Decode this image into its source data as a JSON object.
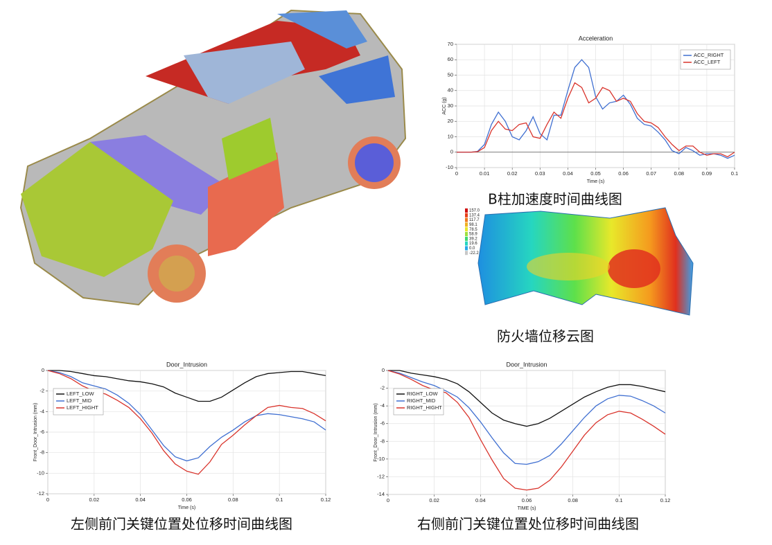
{
  "captions": [
    "B柱加速度时间曲线图",
    "防火墙位移云图",
    "左侧前门关键位置处位移时间曲线图",
    "右侧前门关键位置处位移时间曲线图"
  ],
  "contour_legend": [
    "157.0",
    "137.4",
    "117.7",
    "98.1",
    "78.5",
    "58.9",
    "39.2",
    "19.6",
    "0.0",
    "-22.2"
  ],
  "chart_data": [
    {
      "type": "line",
      "title": "Acceleration",
      "xlabel": "Time (s)",
      "ylabel": "ACC (g)",
      "x": [
        0,
        0.0025,
        0.005,
        0.0075,
        0.01,
        0.0125,
        0.015,
        0.0175,
        0.02,
        0.0225,
        0.025,
        0.0275,
        0.03,
        0.0325,
        0.035,
        0.0375,
        0.04,
        0.0425,
        0.045,
        0.0475,
        0.05,
        0.0525,
        0.055,
        0.0575,
        0.06,
        0.0625,
        0.065,
        0.0675,
        0.07,
        0.0725,
        0.075,
        0.0775,
        0.08,
        0.0825,
        0.085,
        0.0875,
        0.09,
        0.0925,
        0.095,
        0.0975,
        0.1
      ],
      "series": [
        {
          "name": "ACC_RIGHT",
          "color": "#3f6fd1",
          "values": [
            0,
            0,
            0,
            0.5,
            5,
            18,
            26,
            20,
            10,
            8,
            14,
            23,
            12,
            8,
            24,
            24,
            40,
            55,
            60,
            55,
            36,
            28,
            32,
            33,
            37,
            31,
            22,
            18,
            17,
            13,
            8,
            1,
            -1,
            3,
            1,
            -2,
            -1,
            -1,
            -2,
            -4,
            -2
          ]
        },
        {
          "name": "ACC_LEFT",
          "color": "#d9332b",
          "values": [
            0,
            0,
            0,
            0.3,
            3,
            14,
            20,
            15,
            14,
            18,
            19,
            10,
            9,
            18,
            26,
            22,
            35,
            45,
            42,
            32,
            35,
            42,
            40,
            33,
            35,
            33,
            25,
            20,
            19,
            16,
            10,
            5,
            1,
            4,
            4,
            0,
            -2,
            -1,
            -1,
            -3,
            0
          ]
        }
      ],
      "xlim": [
        0,
        0.1
      ],
      "xticks": [
        0,
        0.01,
        0.02,
        0.03,
        0.04,
        0.05,
        0.06,
        0.07,
        0.08,
        0.09,
        0.1
      ],
      "ylim": [
        -10,
        70
      ],
      "yticks": [
        -10,
        0,
        10,
        20,
        30,
        40,
        50,
        60,
        70
      ],
      "grid": true,
      "legend": "upper right"
    },
    {
      "type": "line",
      "title": "Door_Intrusion",
      "xlabel": "Time (s)",
      "ylabel": "Front_Door_Intrusion (mm)",
      "x": [
        0,
        0.005,
        0.01,
        0.015,
        0.02,
        0.025,
        0.03,
        0.035,
        0.04,
        0.045,
        0.05,
        0.055,
        0.06,
        0.065,
        0.07,
        0.075,
        0.08,
        0.085,
        0.09,
        0.095,
        0.1,
        0.105,
        0.11,
        0.115,
        0.12
      ],
      "series": [
        {
          "name": "LEFT_LOW",
          "color": "#111111",
          "values": [
            0,
            0,
            -0.1,
            -0.3,
            -0.5,
            -0.6,
            -0.8,
            -1.0,
            -1.1,
            -1.3,
            -1.6,
            -2.2,
            -2.6,
            -3.0,
            -3.0,
            -2.6,
            -1.9,
            -1.2,
            -0.6,
            -0.3,
            -0.2,
            -0.1,
            -0.1,
            -0.3,
            -0.5
          ]
        },
        {
          "name": "LEFT_MID",
          "color": "#3f6fd1",
          "values": [
            0,
            -0.2,
            -0.6,
            -1.2,
            -1.5,
            -1.8,
            -2.4,
            -3.2,
            -4.3,
            -5.8,
            -7.3,
            -8.4,
            -8.8,
            -8.5,
            -7.4,
            -6.5,
            -5.8,
            -5.0,
            -4.4,
            -4.2,
            -4.3,
            -4.5,
            -4.7,
            -5.0,
            -5.8
          ]
        },
        {
          "name": "LEFT_HIGHT",
          "color": "#d9332b",
          "values": [
            0,
            -0.3,
            -0.8,
            -1.5,
            -2.0,
            -2.3,
            -2.9,
            -3.6,
            -4.7,
            -6.1,
            -7.8,
            -9.1,
            -9.8,
            -10.1,
            -8.9,
            -7.2,
            -6.3,
            -5.3,
            -4.4,
            -3.6,
            -3.4,
            -3.6,
            -3.7,
            -4.2,
            -4.9
          ]
        }
      ],
      "xlim": [
        0,
        0.12
      ],
      "xticks": [
        0,
        0.02,
        0.04,
        0.06,
        0.08,
        0.1,
        0.12
      ],
      "ylim": [
        -12,
        0
      ],
      "yticks": [
        -12,
        -10,
        -8,
        -6,
        -4,
        -2,
        0
      ],
      "grid": true,
      "legend": "upper left"
    },
    {
      "type": "line",
      "title": "Door_Intrusion",
      "xlabel": "TIME (s)",
      "ylabel": "Front_Door_Intrusion (mm)",
      "x": [
        0,
        0.005,
        0.01,
        0.015,
        0.02,
        0.025,
        0.03,
        0.035,
        0.04,
        0.045,
        0.05,
        0.055,
        0.06,
        0.065,
        0.07,
        0.075,
        0.08,
        0.085,
        0.09,
        0.095,
        0.1,
        0.105,
        0.11,
        0.115,
        0.12
      ],
      "series": [
        {
          "name": "RIGHT_LOW",
          "color": "#111111",
          "values": [
            0,
            0,
            -0.3,
            -0.5,
            -0.7,
            -1.0,
            -1.5,
            -2.4,
            -3.6,
            -4.8,
            -5.6,
            -6.0,
            -6.3,
            -6.0,
            -5.4,
            -4.6,
            -3.8,
            -3.0,
            -2.4,
            -1.9,
            -1.6,
            -1.6,
            -1.8,
            -2.1,
            -2.4
          ]
        },
        {
          "name": "RIGHT_MID",
          "color": "#3f6fd1",
          "values": [
            0,
            -0.3,
            -0.8,
            -1.3,
            -1.7,
            -2.3,
            -3.0,
            -4.2,
            -5.8,
            -7.6,
            -9.3,
            -10.5,
            -10.6,
            -10.3,
            -9.6,
            -8.3,
            -6.8,
            -5.3,
            -4.0,
            -3.2,
            -2.8,
            -2.9,
            -3.4,
            -4.0,
            -4.8
          ]
        },
        {
          "name": "RIGHT_HIGHT",
          "color": "#d9332b",
          "values": [
            0,
            -0.4,
            -1.0,
            -1.7,
            -2.2,
            -2.5,
            -3.6,
            -5.3,
            -7.8,
            -10.1,
            -12.2,
            -13.3,
            -13.5,
            -13.3,
            -12.4,
            -10.9,
            -9.1,
            -7.3,
            -5.9,
            -5.0,
            -4.6,
            -4.8,
            -5.5,
            -6.3,
            -7.2
          ]
        }
      ],
      "xlim": [
        0,
        0.12
      ],
      "xticks": [
        0,
        0.02,
        0.04,
        0.06,
        0.08,
        0.1,
        0.12
      ],
      "ylim": [
        -14,
        0
      ],
      "yticks": [
        -14,
        -12,
        -10,
        -8,
        -6,
        -4,
        -2,
        0
      ],
      "grid": true,
      "legend": "upper left"
    }
  ]
}
